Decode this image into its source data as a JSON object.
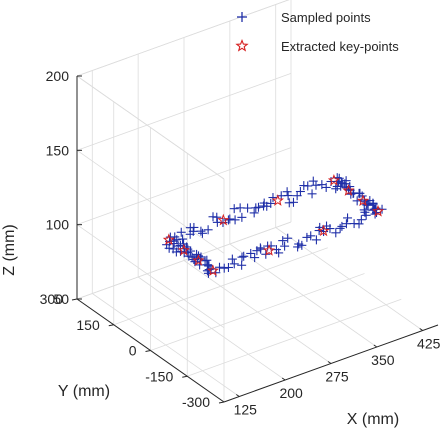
{
  "chart_data": {
    "type": "scatter",
    "title": "",
    "xlabel": "X (mm)",
    "ylabel": "Y (mm)",
    "zlabel": "Z (mm)",
    "xlim": [
      100,
      450
    ],
    "ylim": [
      -300,
      300
    ],
    "zlim": [
      50,
      200
    ],
    "xticks": [
      125,
      200,
      275,
      350,
      425
    ],
    "yticks": [
      -300,
      -150,
      0,
      150,
      300
    ],
    "zticks": [
      50,
      100,
      150,
      200
    ],
    "grid": true,
    "legend_position": "top-right",
    "view": "3d-perspective",
    "series": [
      {
        "name": "Sampled points",
        "marker": "+",
        "color": "#1f2fa8",
        "description": "noisy samples around a closed rectangular path at z ≈ 120 mm",
        "path_corners": [
          {
            "x": 130,
            "y": -180,
            "z": 120
          },
          {
            "x": 130,
            "y": 0,
            "z": 120
          },
          {
            "x": 400,
            "y": 0,
            "z": 120
          },
          {
            "x": 400,
            "y": -180,
            "z": 120
          }
        ]
      },
      {
        "name": "Extracted key-points",
        "marker": "star",
        "color": "#d62020",
        "points": [
          {
            "x": 130,
            "y": -180,
            "z": 120
          },
          {
            "x": 130,
            "y": 0,
            "z": 120
          },
          {
            "x": 400,
            "y": 0,
            "z": 120
          },
          {
            "x": 400,
            "y": -180,
            "z": 120
          }
        ]
      }
    ]
  }
}
